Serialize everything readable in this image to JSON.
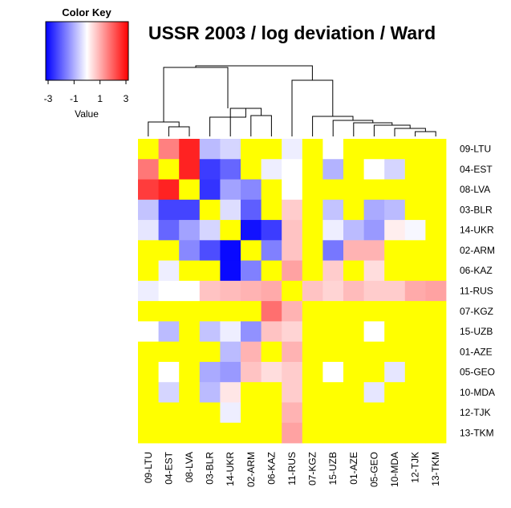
{
  "chart_data": {
    "type": "heatmap",
    "title": "USSR 2003 / log deviation / Ward",
    "labels": [
      "09-LTU",
      "04-EST",
      "08-LVA",
      "03-BLR",
      "14-UKR",
      "02-ARM",
      "06-KAZ",
      "11-RUS",
      "07-KGZ",
      "15-UZB",
      "01-AZE",
      "05-GEO",
      "10-MDA",
      "12-TJK",
      "13-TKM"
    ],
    "values": [
      [
        null,
        1.5,
        2.6,
        -0.8,
        -0.5,
        null,
        null,
        -0.2,
        null,
        0.0,
        null,
        null,
        null,
        null,
        null
      ],
      [
        1.6,
        null,
        2.6,
        -2.3,
        -1.8,
        null,
        -0.2,
        0.0,
        null,
        -0.9,
        null,
        0.0,
        -0.5,
        null,
        null
      ],
      [
        2.3,
        2.6,
        null,
        -2.4,
        -1.1,
        -1.4,
        null,
        0.0,
        null,
        null,
        null,
        null,
        null,
        null,
        null
      ],
      [
        -0.7,
        -2.2,
        -2.2,
        null,
        -0.4,
        -1.9,
        null,
        0.6,
        null,
        -0.7,
        null,
        -1.0,
        -0.8,
        null,
        null
      ],
      [
        -0.3,
        -1.8,
        -1.1,
        -0.5,
        null,
        -2.8,
        -2.3,
        0.7,
        null,
        -0.2,
        -0.8,
        -1.2,
        0.2,
        -0.1,
        null
      ],
      [
        null,
        null,
        -1.4,
        -2.1,
        -2.9,
        null,
        -1.5,
        0.7,
        null,
        -1.6,
        0.9,
        0.9,
        null,
        null,
        null
      ],
      [
        null,
        -0.2,
        null,
        null,
        -2.9,
        -1.5,
        null,
        1.1,
        null,
        0.6,
        null,
        0.4,
        null,
        null,
        null
      ],
      [
        -0.2,
        0.0,
        0.0,
        0.7,
        0.8,
        0.9,
        1.0,
        null,
        0.7,
        0.5,
        0.8,
        0.6,
        0.6,
        1.0,
        1.1
      ],
      [
        null,
        null,
        null,
        null,
        null,
        null,
        1.7,
        0.9,
        null,
        null,
        null,
        null,
        null,
        null,
        null
      ],
      [
        0.0,
        -0.8,
        null,
        -0.7,
        -0.2,
        -1.3,
        0.7,
        0.5,
        null,
        null,
        null,
        0.0,
        null,
        null,
        null
      ],
      [
        null,
        null,
        null,
        null,
        -0.8,
        0.9,
        null,
        0.9,
        null,
        null,
        null,
        null,
        null,
        null,
        null
      ],
      [
        null,
        0.0,
        null,
        -1.0,
        -1.2,
        0.7,
        0.4,
        0.6,
        null,
        0.0,
        null,
        null,
        -0.3,
        null,
        null
      ],
      [
        null,
        -0.5,
        null,
        -0.8,
        0.3,
        null,
        null,
        0.6,
        null,
        null,
        null,
        -0.3,
        null,
        null,
        null
      ],
      [
        null,
        null,
        null,
        null,
        -0.2,
        null,
        null,
        0.9,
        null,
        null,
        null,
        null,
        null,
        null,
        null
      ],
      [
        null,
        null,
        null,
        null,
        null,
        null,
        null,
        1.1,
        null,
        null,
        null,
        null,
        null,
        null,
        null
      ]
    ],
    "missing_color": "#ffff00",
    "colorscale": {
      "low": "#0000ff",
      "mid": "#ffffff",
      "high": "#ff0000",
      "min": -3,
      "max": 3
    },
    "color_key": {
      "title": "Color Key",
      "xlabel": "Value",
      "ticks": [
        "-3",
        "-1",
        "1",
        "3"
      ],
      "tick_values": [
        -3,
        -1,
        1,
        3
      ]
    },
    "column_dendrogram": true
  }
}
